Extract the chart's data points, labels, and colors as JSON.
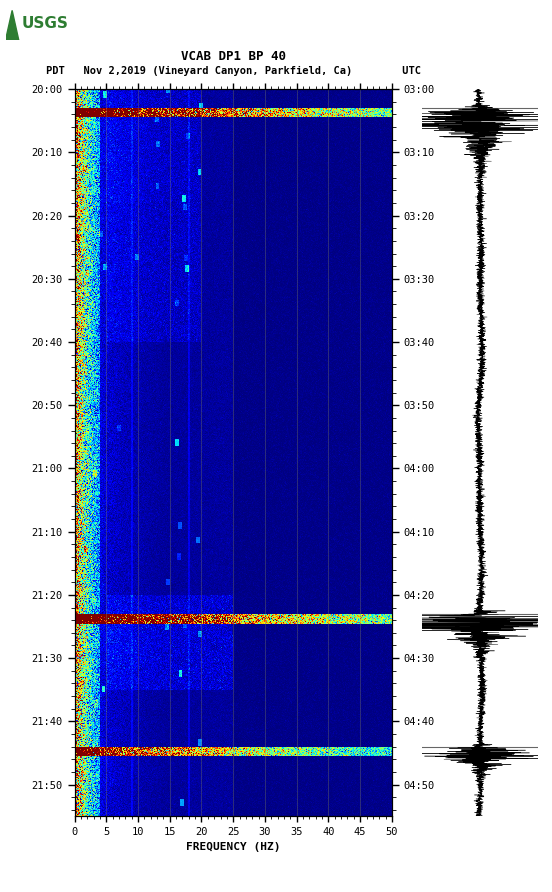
{
  "title_line1": "VCAB DP1 BP 40",
  "title_line2": "PDT   Nov 2,2019 (Vineyard Canyon, Parkfield, Ca)        UTC",
  "xlabel": "FREQUENCY (HZ)",
  "freq_min": 0,
  "freq_max": 50,
  "freq_ticks": [
    0,
    5,
    10,
    15,
    20,
    25,
    30,
    35,
    40,
    45,
    50
  ],
  "time_minutes": 115,
  "left_yticks": [
    "20:00",
    "20:10",
    "20:20",
    "20:30",
    "20:40",
    "20:50",
    "21:00",
    "21:10",
    "21:20",
    "21:30",
    "21:40",
    "21:50"
  ],
  "right_yticks": [
    "03:00",
    "03:10",
    "03:20",
    "03:30",
    "03:40",
    "03:50",
    "04:00",
    "04:10",
    "04:20",
    "04:30",
    "04:40",
    "04:50"
  ],
  "colormap": "jet",
  "background_color": "#ffffff",
  "figsize": [
    5.52,
    8.92
  ],
  "dpi": 100,
  "vmin": 0.0,
  "vmax": 12.0,
  "grid_color": "#808060",
  "grid_alpha": 0.5,
  "grid_linewidth": 0.5,
  "event1_t": 3,
  "event1_dur": 1.5,
  "event1_amp": 15.0,
  "event2_t": 83,
  "event2_dur": 1.5,
  "event2_amp": 15.0,
  "event3_t": 104,
  "event3_dur": 1.5,
  "event3_amp": 12.0,
  "seis_event1_t": 3,
  "seis_event2_t": 83,
  "seis_event3_t": 104
}
